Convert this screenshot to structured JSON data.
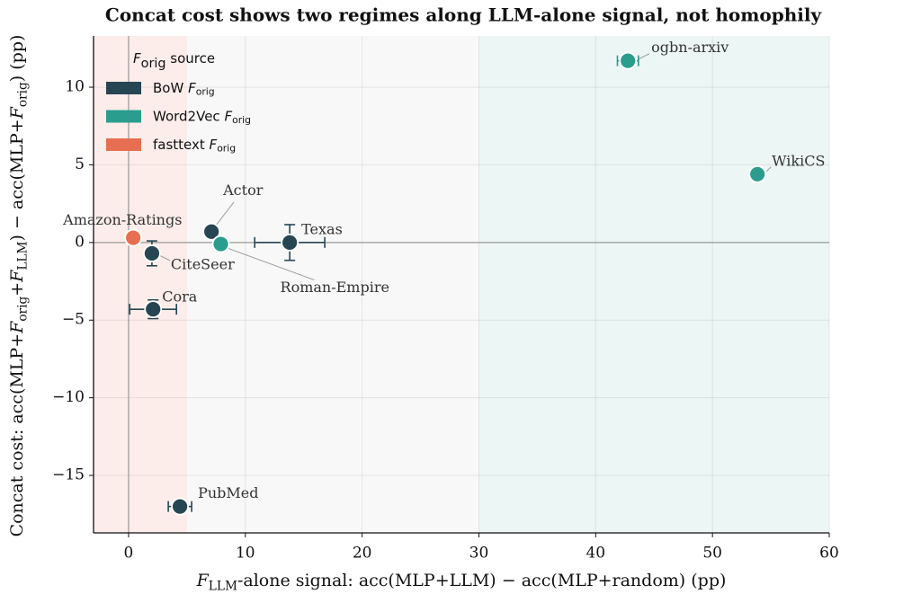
{
  "chart_data": {
    "type": "scatter",
    "title": "Concat cost shows two regimes along LLM-alone signal, not homophily",
    "xlabel": [
      {
        "text": "F",
        "italic": true
      },
      {
        "text": "LLM",
        "sub": true
      },
      {
        "text": "-alone signal: acc(MLP+LLM) − acc(MLP+random) (pp)"
      }
    ],
    "ylabel": [
      {
        "text": "Concat cost: acc(MLP+"
      },
      {
        "text": "F",
        "italic": true
      },
      {
        "text": "orig",
        "sub": true
      },
      {
        "text": "+"
      },
      {
        "text": "F",
        "italic": true
      },
      {
        "text": "LLM",
        "sub": true
      },
      {
        "text": ") − acc(MLP+"
      },
      {
        "text": "F",
        "italic": true
      },
      {
        "text": "orig",
        "sub": true
      },
      {
        "text": ") (pp)"
      }
    ],
    "legend_title": [
      {
        "text": "F",
        "italic": true
      },
      {
        "text": "orig",
        "sub": true
      },
      {
        "text": " source"
      }
    ],
    "legend": "upper left",
    "xlim": [
      -3,
      60
    ],
    "ylim": [
      -18.7,
      13.3
    ],
    "xticks": [
      0,
      10,
      20,
      30,
      40,
      50,
      60
    ],
    "yticks": [
      {
        "value": -15,
        "label": "−15"
      },
      {
        "value": -10,
        "label": "−10"
      },
      {
        "value": -5,
        "label": "−5"
      },
      0,
      5,
      10
    ],
    "grid": true,
    "hline": 0,
    "vline": 0,
    "regions": [
      {
        "x0": -3,
        "x1": 5,
        "color": "rgba(231,111,81,0.12)"
      },
      {
        "x0": 5,
        "x1": 30,
        "color": "rgba(200,200,200,0.12)"
      },
      {
        "x0": 30,
        "x1": 60,
        "color": "rgba(42,157,143,0.09)"
      }
    ],
    "series": [
      {
        "name": [
          {
            "text": "BoW "
          },
          {
            "text": "F",
            "italic": true
          },
          {
            "text": "orig",
            "sub": true
          }
        ],
        "color": "#264653",
        "labels": [
          "Texas",
          "Actor",
          "CiteSeer",
          "Cora",
          "PubMed"
        ],
        "x": [
          13.8,
          7.1,
          2.0,
          2.1,
          4.4
        ],
        "values": [
          0.0,
          0.7,
          -0.7,
          -4.3,
          -17.0
        ],
        "xerr": [
          3.0,
          null,
          null,
          2.0,
          1.0
        ],
        "yerr": [
          1.15,
          null,
          0.8,
          0.6,
          null
        ]
      },
      {
        "name": [
          {
            "text": "Word2Vec "
          },
          {
            "text": "F",
            "italic": true
          },
          {
            "text": "orig",
            "sub": true
          }
        ],
        "color": "#2a9d8f",
        "labels": [
          "ogbn-arxiv",
          "WikiCS",
          "Roman-Empire"
        ],
        "x": [
          42.76,
          53.85,
          7.9
        ],
        "values": [
          11.7,
          4.4,
          -0.1
        ],
        "xerr": [
          0.9,
          null,
          null
        ],
        "yerr": [
          null,
          null,
          null
        ]
      },
      {
        "name": [
          {
            "text": "fasttext "
          },
          {
            "text": "F",
            "italic": true
          },
          {
            "text": "orig",
            "sub": true
          }
        ],
        "color": "#e76f51",
        "labels": [
          "Amazon-Ratings"
        ],
        "x": [
          0.4
        ],
        "values": [
          0.3
        ],
        "xerr": [
          null
        ],
        "yerr": [
          null
        ]
      }
    ]
  }
}
